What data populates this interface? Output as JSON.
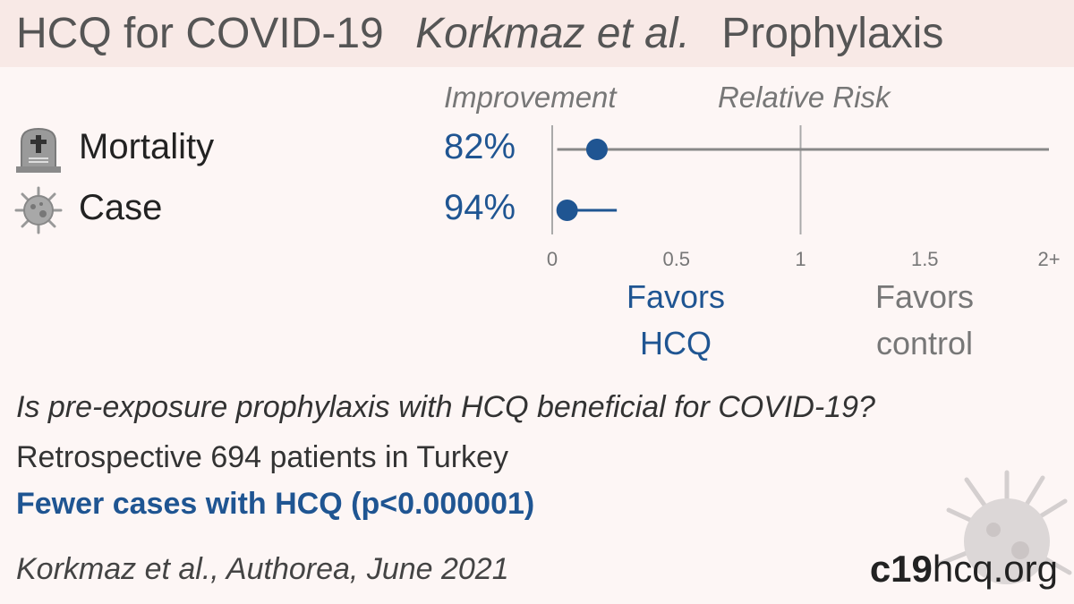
{
  "title": {
    "part1": "HCQ for COVID-19",
    "part2": "Korkmaz et al.",
    "part3": "Prophylaxis"
  },
  "columns": {
    "improvement": "Improvement",
    "relative_risk": "Relative Risk"
  },
  "colors": {
    "accent": "#1f5592",
    "header_bg": "#f8e9e6",
    "background": "#fdf6f5"
  },
  "chart_data": {
    "type": "forest",
    "x_ticks": [
      "0",
      "0.5",
      "1",
      "1.5",
      "2+"
    ],
    "xlim": [
      0,
      2
    ],
    "reference_line": 1,
    "rows": [
      {
        "outcome": "Mortality",
        "icon": "tombstone-icon",
        "improvement": "82%",
        "rr": 0.18,
        "ci_low": 0.02,
        "ci_high": 2.0
      },
      {
        "outcome": "Case",
        "icon": "virus-icon",
        "improvement": "94%",
        "rr": 0.06,
        "ci_low": 0.02,
        "ci_high": 0.26
      }
    ]
  },
  "favors": {
    "left_line1": "Favors",
    "left_line2": "HCQ",
    "right_line1": "Favors",
    "right_line2": "control"
  },
  "question": "Is pre-exposure prophylaxis with HCQ beneficial for COVID-19?",
  "design": "Retrospective 694 patients in Turkey",
  "finding": "Fewer cases with HCQ (p<0.000001)",
  "citation": "Korkmaz et al., Authorea, June 2021",
  "site": {
    "bold": "c19",
    "rest": "hcq.org"
  }
}
